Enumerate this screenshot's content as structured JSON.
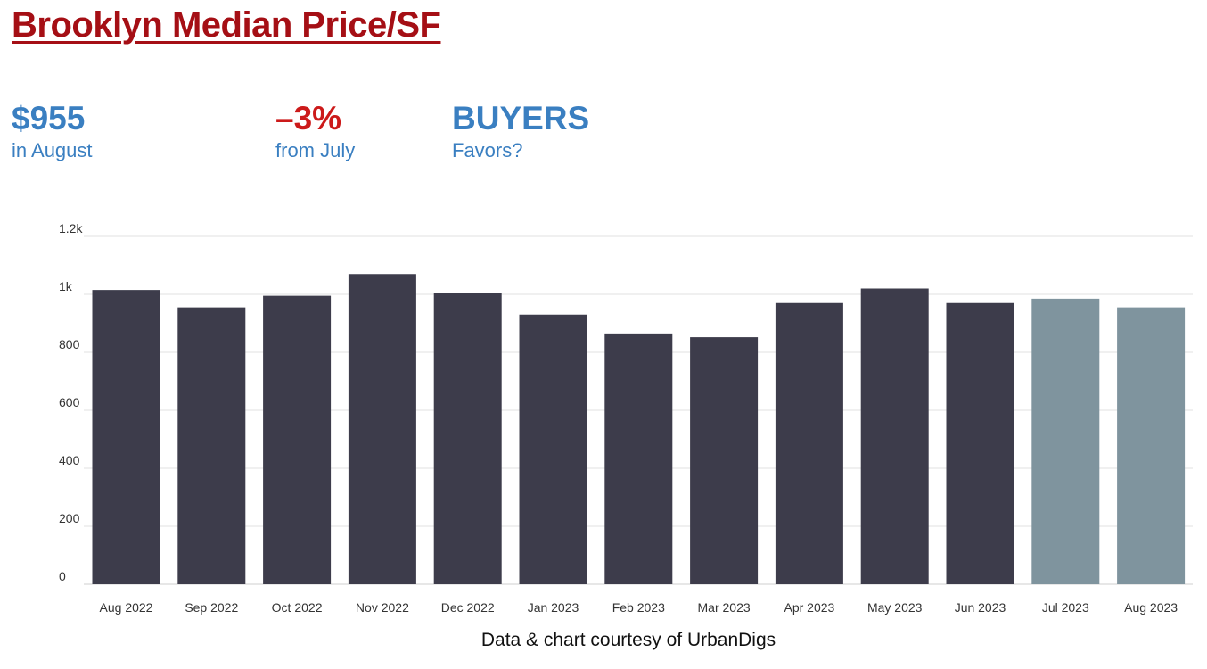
{
  "title": "Brooklyn Median Price/SF",
  "kpis": [
    {
      "value": "$955",
      "label": "in August"
    },
    {
      "value": "–3%",
      "label": "from July"
    },
    {
      "value": "BUYERS",
      "label": "Favors?"
    }
  ],
  "credit": "Data & chart courtesy of UrbanDigs",
  "colors": {
    "title": "#a50f15",
    "kpi_blue": "#3a7fc1",
    "kpi_red": "#cc1a1a",
    "bar_dark": "#3d3c4b",
    "bar_light": "#7f949e"
  },
  "chart_data": {
    "type": "bar",
    "categories": [
      "Aug 2022",
      "Sep 2022",
      "Oct 2022",
      "Nov 2022",
      "Dec 2022",
      "Jan 2023",
      "Feb 2023",
      "Mar 2023",
      "Apr 2023",
      "May 2023",
      "Jun 2023",
      "Jul 2023",
      "Aug 2023"
    ],
    "values": [
      1015,
      955,
      995,
      1070,
      1005,
      930,
      865,
      852,
      970,
      1020,
      970,
      985,
      955
    ],
    "bar_colors": [
      "#3d3c4b",
      "#3d3c4b",
      "#3d3c4b",
      "#3d3c4b",
      "#3d3c4b",
      "#3d3c4b",
      "#3d3c4b",
      "#3d3c4b",
      "#3d3c4b",
      "#3d3c4b",
      "#3d3c4b",
      "#7f949e",
      "#7f949e"
    ],
    "yticks": [
      0,
      200,
      400,
      600,
      800,
      1000,
      1200
    ],
    "ytick_labels": [
      "0",
      "200",
      "400",
      "600",
      "800",
      "1k",
      "1.2k"
    ],
    "ylim": [
      0,
      1200
    ],
    "grid": true,
    "title": "",
    "xlabel": "",
    "ylabel": ""
  }
}
